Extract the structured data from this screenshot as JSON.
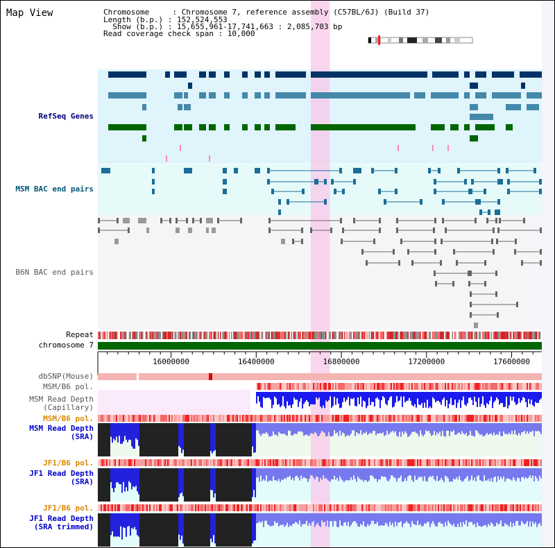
{
  "title": "Map View",
  "info": {
    "chromosome_line": "Chromosome     : Chromosome 7, reference assembly (C57BL/6J) (Build 37)",
    "length_line": "Length (b.p.) : 152,524,553",
    "show_line": "  Show (b.p.) : 15,655,961-17,741,663 : 2,085,703 bp",
    "coverage_line": "Read coverage check span : 10,000"
  },
  "tracks": {
    "refseq": "RefSeq Genes",
    "msm_bac": "MSM BAC end pairs",
    "b6n_bac": "B6N BAC end pairs",
    "repeat": "Repeat",
    "chromosome": "chromosome 7",
    "dbsnp": "dbSNP(Mouse)",
    "msm_b6_pol_1": "MSM/B6 pol.",
    "msm_depth_cap": "MSM Read Depth\n(Capillary)",
    "msm_b6_pol_2": "MSM/B6 pol.",
    "msm_depth_sra": "MSM Read Depth\n(SRA)",
    "jf1_b6_pol_1": "JF1/B6 pol.",
    "jf1_depth_sra": "JF1 Read Depth\n(SRA)",
    "jf1_b6_pol_2": "JF1/B6 pol.",
    "jf1_depth_trim": "JF1 Read Depth\n(SRA trimmed)"
  },
  "axis": {
    "ticks": [
      "16000000",
      "16400000",
      "16800000",
      "17200000",
      "17600000"
    ],
    "tick_values": [
      16000000,
      16400000,
      16800000,
      17200000,
      17600000
    ],
    "range": [
      15655961,
      17741663
    ]
  },
  "highlight": {
    "start": 16655961,
    "end": 16745961
  },
  "colors": {
    "refseq_bg": "#e0f4fc",
    "msm_bg": "#e6fafa",
    "b6n_bg": "#f5f5f8",
    "highlight": "#f8c8e8",
    "gene_dark": "#003366",
    "gene_mid": "#4488aa",
    "gene_green": "#006600",
    "chrom_green": "#006600",
    "depth_blue": "#1a1aee",
    "depth_black": "#222222"
  }
}
